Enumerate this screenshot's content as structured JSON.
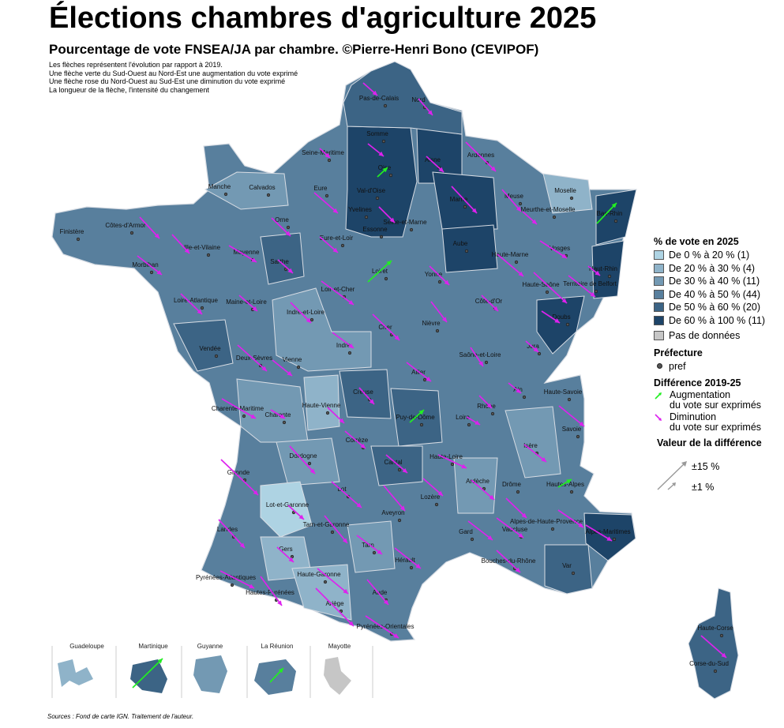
{
  "title": "Élections chambres d'agriculture 2025",
  "subtitle": "Pourcentage de vote FNSEA/JA par chambre. ©Pierre-Henri Bono (CEVIPOF)",
  "notes": [
    "Les flèches représentent l'évolution par rapport à 2019.",
    "Une flèche verte du Sud-Ouest au Nord-Est une augmentation du vote exprimé",
    "Une flèche rose du Nord-Ouest au Sud-Est une diminution du vote exprimé",
    "La longueur de la flèche, l'intensité du changement"
  ],
  "source": "Sources : Fond de carte IGN. Traitement de l'auteur.",
  "legend": {
    "title": "% de vote en 2025",
    "classes": [
      {
        "label": "De 0 % à 20 % (1)",
        "color": "#aed3e3"
      },
      {
        "label": "De 20 % à 30 % (4)",
        "color": "#8fb3c9"
      },
      {
        "label": "De 30 % à 40 % (11)",
        "color": "#7399b3"
      },
      {
        "label": "De 40 % à 50 % (44)",
        "color": "#587f9d"
      },
      {
        "label": "De 50 % à 60 % (20)",
        "color": "#3c6485"
      },
      {
        "label": "De 60 % à 100 % (11)",
        "color": "#1d4468"
      }
    ],
    "nodata": {
      "label": "Pas de données",
      "color": "#c6c6c6"
    },
    "pref_title": "Préfecture",
    "pref_label": "pref",
    "diff_title": "Différence 2019-25",
    "increase_label_1": "Augmentation",
    "increase_label_2": "du vote sur exprimés",
    "decrease_label_1": "Diminution",
    "decrease_label_2": "du vote sur exprimés",
    "value_title": "Valeur de la différence",
    "value_big": "±15 %",
    "value_small": "±1 %"
  },
  "colors": {
    "increase": "#22ee22",
    "decrease": "#dd22ee",
    "border": "#d8dde4"
  },
  "inset_labels": [
    "Guadeloupe",
    "Martinique",
    "Guyanne",
    "La Réunion",
    "Mayotte"
  ],
  "department_labels": [
    "Pas-de-Calais",
    "Nord",
    "Somme",
    "Seine-Maritime",
    "Oise",
    "Aisne",
    "Ardennes",
    "Manche",
    "Calvados",
    "Eure",
    "Val-d'Oise",
    "Yvelines",
    "Seine-et-Marne",
    "Essonne",
    "Marne",
    "Meuse",
    "Moselle",
    "Bas-Rhin",
    "Meurthe-et-Moselle",
    "Finistère",
    "Côtes-d'Armor",
    "Orne",
    "Ille-et-Vilaine",
    "Mayenne",
    "Eure-et-Loir",
    "Sarthe",
    "Aube",
    "Vosges",
    "Haut-Rhin",
    "Haute-Marne",
    "Morbihan",
    "Loiret",
    "Loire-Atlantique",
    "Maine-et-Loire",
    "Loir-et-Cher",
    "Yonne",
    "Haute-Saône",
    "Territoire de Belfort",
    "Indre-et-Loire",
    "Côte-d'Or",
    "Doubs",
    "Vendée",
    "Deux-Sèvres",
    "Vienne",
    "Indre",
    "Cher",
    "Nièvre",
    "Jura",
    "Saône-et-Loire",
    "Allier",
    "Ain",
    "Haute-Savoie",
    "Creuse",
    "Charente-Maritime",
    "Charente",
    "Haute-Vienne",
    "Puy-de-Dôme",
    "Rhône",
    "Loire",
    "Savoie",
    "Corrèze",
    "Dordogne",
    "Cantal",
    "Haute-Loire",
    "Isère",
    "Gironde",
    "Ardèche",
    "Drôme",
    "Hautes-Alpes",
    "Lot",
    "Lot-et-Garonne",
    "Lozère",
    "Aveyron",
    "Alpes-de-Haute-Provence",
    "Tarn-et-Garonne",
    "Landes",
    "Gard",
    "Vaucluse",
    "Alpes-Maritimes",
    "Gers",
    "Tarn",
    "Hérault",
    "Bouches-du-Rhône",
    "Var",
    "Haute-Garonne",
    "Pyrénées-Atlantiques",
    "Hautes-Pyrénées",
    "Aude",
    "Ariège",
    "Pyrénées-Orientales",
    "Haute-Corse",
    "Corse-du-Sud"
  ]
}
